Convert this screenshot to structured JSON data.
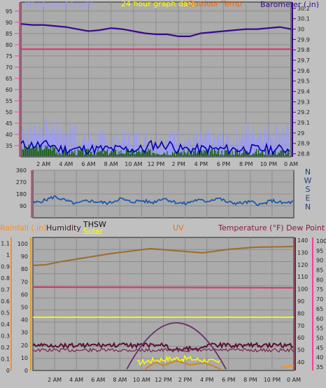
{
  "window": {
    "background": "#c0c0c0"
  },
  "chart_data": [
    {
      "id": "top",
      "type": "line",
      "title": "24 hour graph date",
      "indoor_label": "Outdoor Temp",
      "left_label": "Windspeed (mph)",
      "right_label": "Barometer (.in)",
      "x_ticks": [
        "2 AM",
        "4 AM",
        "6 AM",
        "8 AM",
        "10 AM",
        "12 PM",
        "2 PM",
        "4 PM",
        "6 PM",
        "8 PM",
        "10 PM",
        "0 AM"
      ],
      "left_axis": {
        "ticks": [
          35,
          40,
          45,
          50,
          55,
          60,
          65,
          70,
          75,
          80,
          85,
          90,
          95
        ],
        "range": [
          30,
          99
        ]
      },
      "right_axis": {
        "ticks": [
          "28.8",
          "28.9",
          "29",
          "29.1",
          "29.2",
          "29.3",
          "29.4",
          "29.5",
          "29.6",
          "29.7",
          "29.8",
          "29.9",
          "30",
          "30.1",
          "30.2"
        ],
        "range": [
          28.77,
          30.26
        ]
      },
      "colors": {
        "barometer": "#3a0a8c",
        "outdoor_temp": "#e0306a",
        "gust": "#9999ff",
        "wind": "#0000aa",
        "fill": "#0d5c0d",
        "left_axis": "#ff3b99",
        "right_axis": "#3a0a8c"
      },
      "series": [
        {
          "name": "Barometer",
          "values": [
            30.05,
            30.04,
            30.04,
            30.03,
            30.02,
            30.0,
            29.98,
            29.99,
            30.01,
            30.0,
            29.98,
            29.96,
            29.95,
            29.95,
            29.93,
            29.93,
            29.96,
            29.97,
            29.98,
            29.99,
            30.0,
            30.0,
            30.01,
            30.02,
            30.0
          ]
        },
        {
          "name": "Outdoor Temp",
          "values": [
            78,
            78,
            78,
            78,
            78,
            78,
            78,
            78,
            78,
            78,
            78,
            78,
            78,
            78,
            78,
            78,
            78,
            78,
            78,
            78,
            78,
            78,
            78,
            78,
            78
          ]
        }
      ]
    },
    {
      "id": "middle",
      "type": "line",
      "left_axis": {
        "ticks": [
          "90",
          "180",
          "270",
          "360"
        ]
      },
      "compass": [
        "N",
        "W",
        "S",
        "E",
        "N"
      ],
      "colors": {
        "line": "#1f5aa8",
        "axis": "#ff3b99"
      },
      "series": [
        {
          "name": "Wind Direction",
          "values": [
            110,
            130,
            160,
            130,
            105,
            130,
            120,
            110,
            145,
            120,
            130,
            115,
            150,
            120,
            105,
            135,
            125,
            150,
            115,
            110,
            120,
            100,
            130,
            110,
            120
          ]
        }
      ]
    },
    {
      "id": "bottom",
      "type": "line",
      "rainfall_label": "Rainfall (.in)",
      "humidity_label": "Humidity",
      "thsw_label": "THSW",
      "solar_label": "Solar",
      "uv_label": "UV",
      "temp_label": "Temperature (°F) Dew Point (°F)",
      "x_ticks": [
        "2 AM",
        "4 AM",
        "6 AM",
        "8 AM",
        "10 AM",
        "12 PM",
        "2 PM",
        "4 PM",
        "6 PM",
        "8 PM",
        "10 PM",
        "0 AM"
      ],
      "rain_axis": {
        "ticks": [
          "0",
          "0.1",
          "0.2",
          "0.3",
          "0.4",
          "0.5",
          "0.6",
          "0.7",
          "0.8",
          "0.9",
          "1",
          "1.1"
        ]
      },
      "hum_axis": {
        "ticks": [
          "0",
          "10",
          "20",
          "30",
          "40",
          "50",
          "60",
          "70",
          "80",
          "90",
          "100"
        ]
      },
      "temp_axis": {
        "ticks": [
          "40",
          "50",
          "60",
          "70",
          "80",
          "90",
          "100",
          "110",
          "120",
          "130",
          "140"
        ]
      },
      "dew_axis": {
        "ticks": [
          "35",
          "40",
          "45",
          "50",
          "55",
          "60",
          "65",
          "70",
          "75",
          "80",
          "85",
          "90",
          "95",
          "100"
        ]
      },
      "colors": {
        "humidity": "#9c6b2e",
        "outdoor_temp": "#e0306a",
        "solar": "#ffff00",
        "uv": "#d08020",
        "thsw": "#5a1030",
        "dew": "#7a2a55",
        "arc": "#6a2d6a",
        "rain_axis": "#ff8c1a",
        "hum_axis": "#d99a2b",
        "temp_axis": "#8b1a3a",
        "dew_axis": "#ff3b99"
      }
    }
  ]
}
